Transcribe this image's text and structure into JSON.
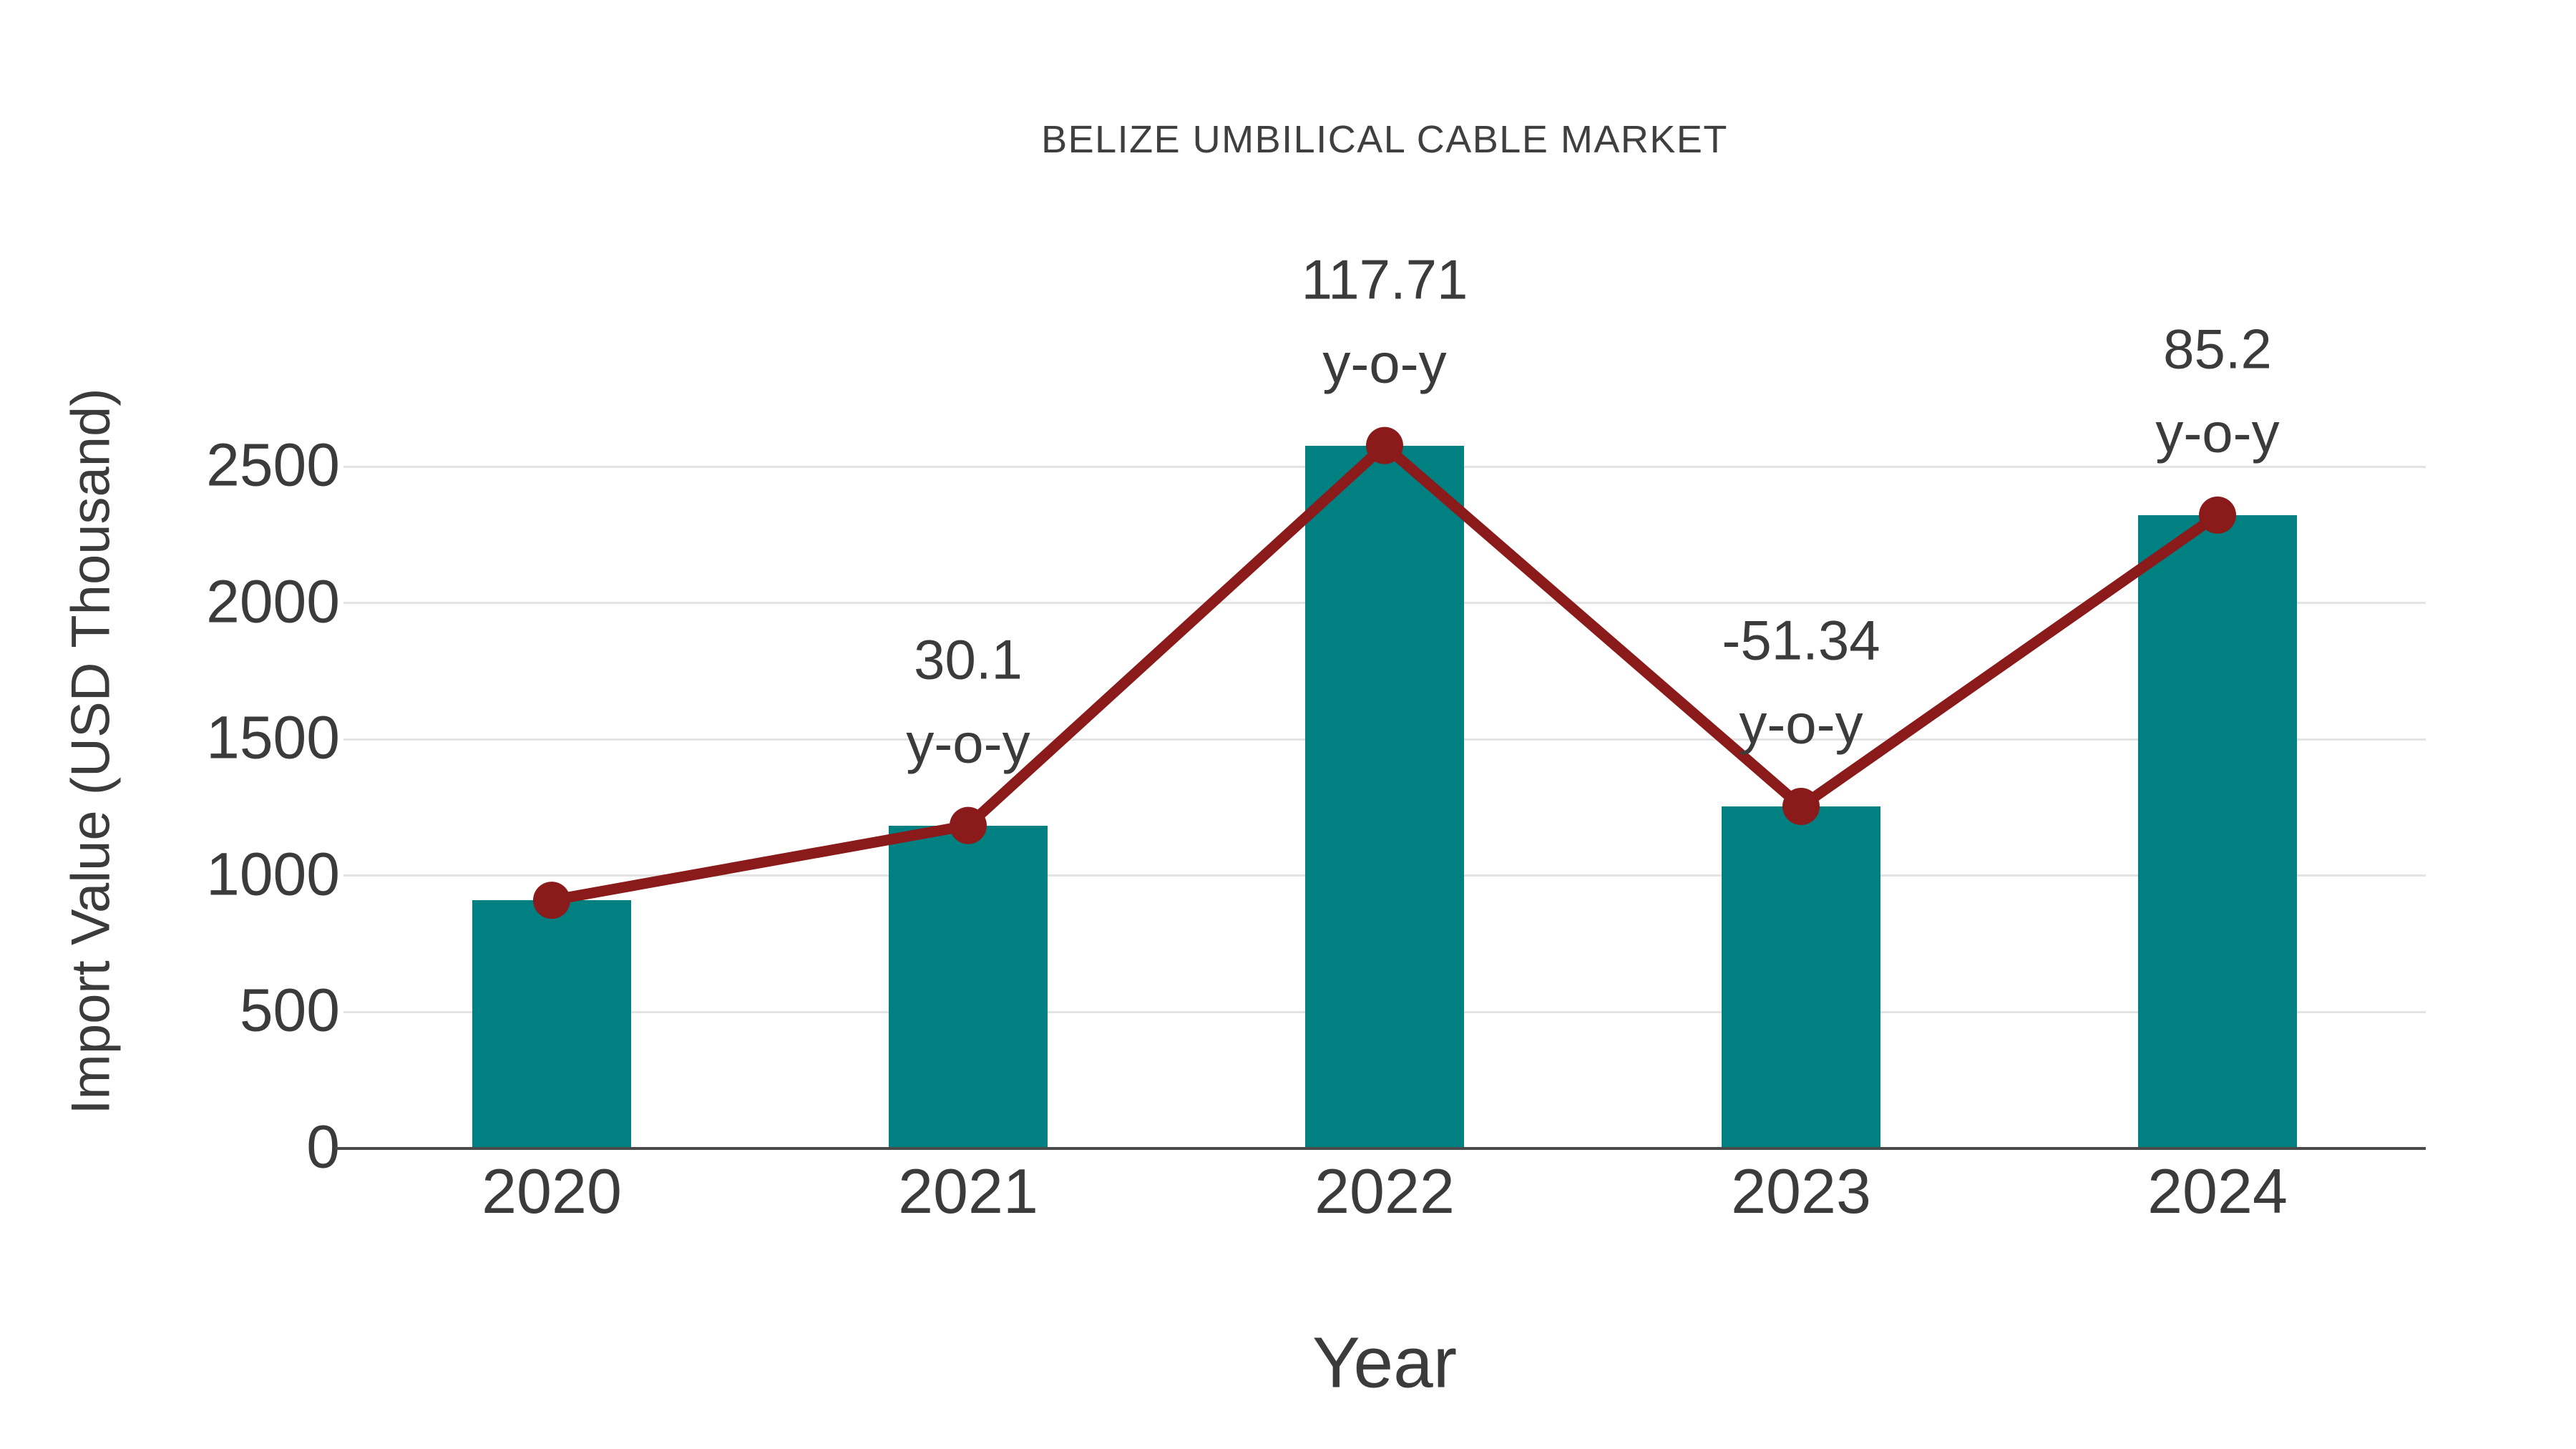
{
  "title": "BELIZE UMBILICAL CABLE MARKET",
  "chart_data": {
    "type": "bar",
    "subtype": "bar-with-line-overlay",
    "title": "BELIZE UMBILICAL CABLE MARKET",
    "xlabel": "Year",
    "ylabel": "Import Value (USD Thousand)",
    "categories": [
      "2020",
      "2021",
      "2022",
      "2023",
      "2024"
    ],
    "series": [
      {
        "name": "Import Value (USD Thousand)",
        "type": "bar",
        "values": [
          910,
          1184,
          2577,
          1254,
          2322
        ]
      },
      {
        "name": "y-o-y growth (%)",
        "type": "line",
        "values": [
          null,
          30.1,
          117.71,
          -51.34,
          85.2
        ],
        "plotted_at": "bar-top values of Import Value series"
      }
    ],
    "annotations": [
      {
        "category": "2021",
        "value_text": "30.1",
        "label_text": "y-o-y"
      },
      {
        "category": "2022",
        "value_text": "117.71",
        "label_text": "y-o-y"
      },
      {
        "category": "2023",
        "value_text": "-51.34",
        "label_text": "y-o-y"
      },
      {
        "category": "2024",
        "value_text": "85.2",
        "label_text": "y-o-y"
      }
    ],
    "yticks": [
      0,
      500,
      1000,
      1500,
      2000,
      2500
    ],
    "ylim": [
      0,
      2800
    ],
    "grid": "horizontal-only",
    "legend": "none",
    "colors": {
      "bar": "#008080",
      "line": "#8B1A1A",
      "marker": "#8B1A1A",
      "text": "#3b3b3b",
      "gridline": "#e3e3e3",
      "axis_line": "#4a4a4a",
      "background": "#ffffff"
    }
  }
}
